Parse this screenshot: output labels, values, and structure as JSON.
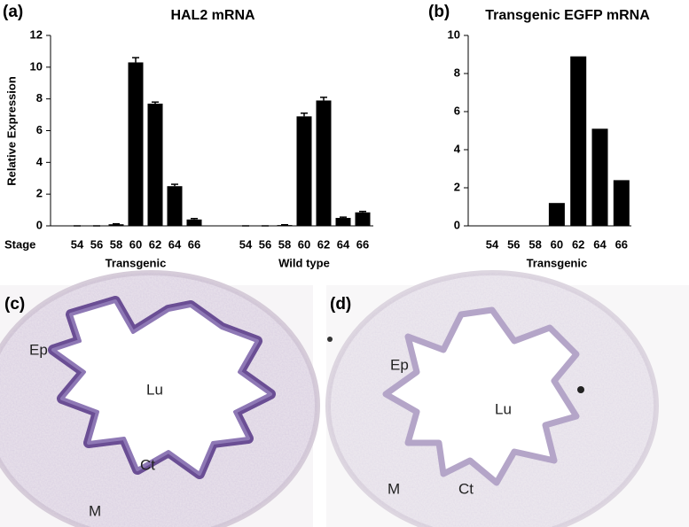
{
  "chart_data": [
    {
      "type": "bar",
      "panel": "(a)",
      "title": "HAL2 mRNA",
      "ylabel": "Relative Expression",
      "category_axis_label": "Stage",
      "categories": [
        "54",
        "56",
        "58",
        "60",
        "62",
        "64",
        "66",
        "54",
        "56",
        "58",
        "60",
        "62",
        "64",
        "66"
      ],
      "group_labels": [
        "Transgenic",
        "Wild type"
      ],
      "values": [
        0,
        0,
        0.1,
        10.3,
        7.7,
        2.5,
        0.4,
        0,
        0,
        0.05,
        6.9,
        7.9,
        0.5,
        0.85
      ],
      "errors": [
        0,
        0,
        0.03,
        0.3,
        0.1,
        0.12,
        0.06,
        0,
        0,
        0.02,
        0.2,
        0.2,
        0.05,
        0.06
      ],
      "color": "#000000",
      "ylim": [
        0,
        12
      ],
      "yticks": [
        0,
        2,
        4,
        6,
        8,
        10,
        12
      ]
    },
    {
      "type": "bar",
      "panel": "(b)",
      "title": "Transgenic EGFP mRNA",
      "categories": [
        "54",
        "56",
        "58",
        "60",
        "62",
        "64",
        "66"
      ],
      "group_labels": [
        "Transgenic"
      ],
      "values": [
        0,
        0,
        0,
        1.2,
        8.9,
        5.1,
        2.4
      ],
      "color": "#000000",
      "ylim": [
        0,
        10
      ],
      "yticks": [
        0,
        2,
        4,
        6,
        8,
        10
      ]
    }
  ],
  "micrographs": [
    {
      "panel": "(c)",
      "labels": [
        "Ep",
        "Lu",
        "Ct",
        "M"
      ]
    },
    {
      "panel": "(d)",
      "labels": [
        "Ep",
        "Lu",
        "Ct",
        "M"
      ]
    }
  ]
}
